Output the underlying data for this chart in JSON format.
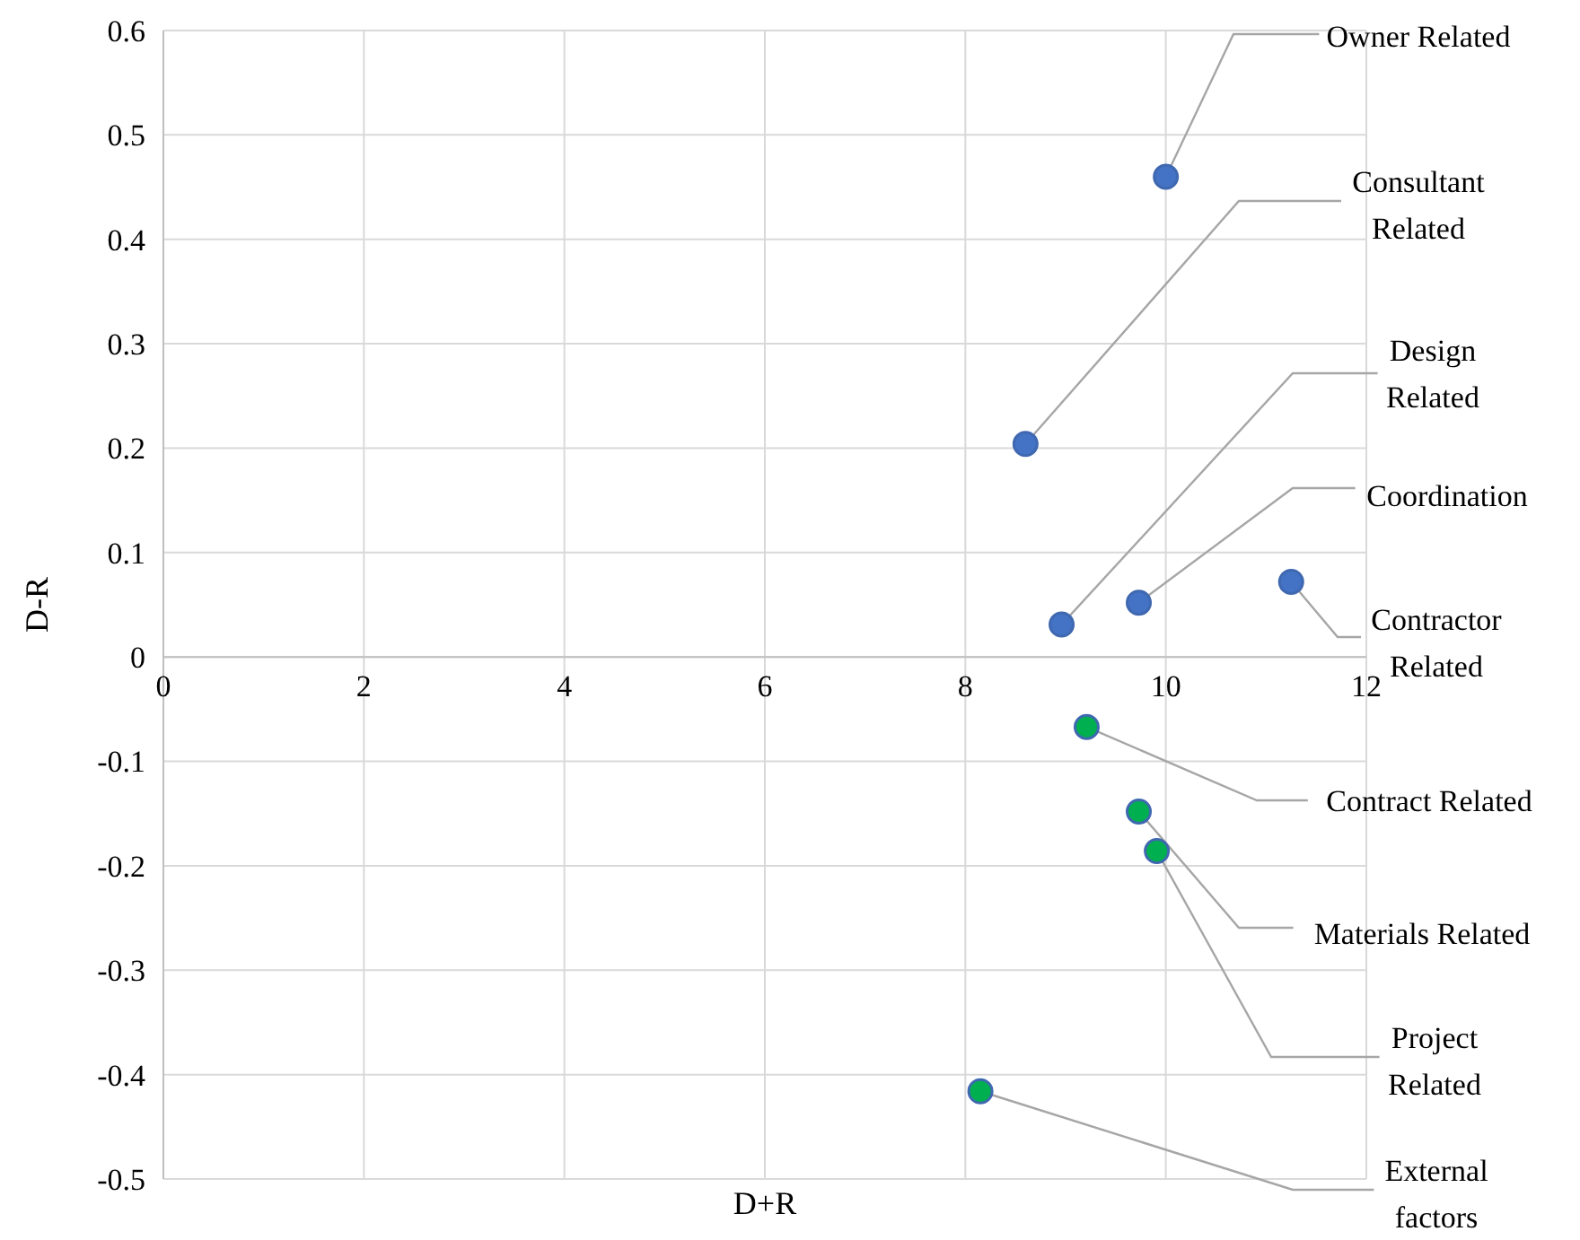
{
  "chart_data": {
    "type": "scatter",
    "xlabel": "D+R",
    "ylabel": "D-R",
    "x": [
      10.0,
      8.6,
      8.96,
      9.73,
      11.25,
      9.21,
      9.73,
      9.91,
      8.15
    ],
    "values": [
      0.46,
      0.204,
      0.031,
      0.052,
      0.072,
      -0.067,
      -0.148,
      -0.186,
      -0.416
    ],
    "colors": [
      "#4472c4",
      "#4472c4",
      "#4472c4",
      "#4472c4",
      "#4472c4",
      "#00b050",
      "#00b050",
      "#00b050",
      "#00b050"
    ],
    "xlim": [
      0,
      12
    ],
    "xticks": [
      0,
      2,
      4,
      6,
      8,
      10,
      12
    ],
    "ylim": [
      -0.5,
      0.6
    ],
    "yticks": [
      -0.5,
      -0.4,
      -0.3,
      -0.2,
      -0.1,
      0,
      0.1,
      0.2,
      0.3,
      0.4,
      0.5,
      0.6
    ],
    "grid": true,
    "marker": "circle",
    "annotations": [
      {
        "text": "Owner Related",
        "x": 10.0,
        "y": 0.46
      },
      {
        "text": "Consultant Related",
        "x": 8.6,
        "y": 0.204
      },
      {
        "text": "Design Related",
        "x": 8.96,
        "y": 0.031
      },
      {
        "text": "Coordination",
        "x": 9.73,
        "y": 0.052
      },
      {
        "text": "Contractor Related",
        "x": 11.25,
        "y": 0.072
      },
      {
        "text": "Contract Related",
        "x": 9.21,
        "y": -0.067
      },
      {
        "text": "Materials Related",
        "x": 9.73,
        "y": -0.148
      },
      {
        "text": "Project Related",
        "x": 9.91,
        "y": -0.186
      },
      {
        "text": "External factors",
        "x": 8.15,
        "y": -0.416
      }
    ]
  }
}
